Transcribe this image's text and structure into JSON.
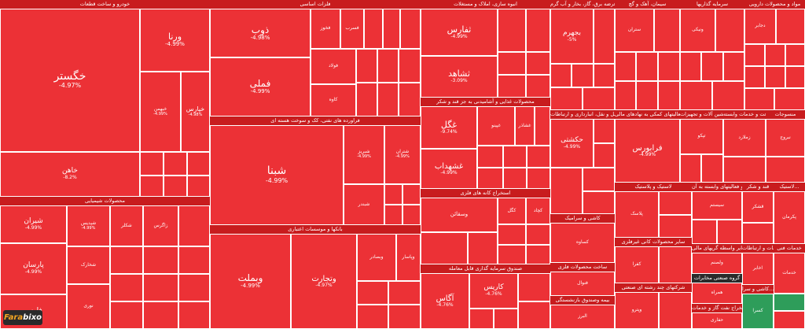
{
  "colors": {
    "negative": "#ec3136",
    "sector_header": "#c81c1e",
    "positive": "#2e9d5a"
  },
  "logo": {
    "part1": "Fara",
    "part2": "bixo"
  },
  "sectors": [
    {
      "title": "خودرو و ساخت قطعات",
      "tiles": [
        {
          "symbol": "خگستر",
          "change": "-4.97%"
        },
        {
          "symbol": "ورنا",
          "change": "-4.99%"
        },
        {
          "symbol": "خاهن",
          "change": "-8.2%"
        },
        {
          "symbol": "خپارس",
          "change": "-4.98%"
        },
        {
          "symbol": "خبهمن",
          "change": "-4.99%"
        }
      ]
    },
    {
      "title": "محصولات شیمیایی",
      "tiles": [
        {
          "symbol": "شیران",
          "change": "-4.99%"
        },
        {
          "symbol": "پارسان",
          "change": "-4.99%"
        },
        {
          "symbol": "فارس",
          "change": ""
        },
        {
          "symbol": "شپدیس",
          "change": "-4.99%"
        },
        {
          "symbol": "شکلر",
          "change": ""
        },
        {
          "symbol": "زاگرس",
          "change": ""
        },
        {
          "symbol": "شخارک",
          "change": ""
        },
        {
          "symbol": "نوری",
          "change": ""
        }
      ]
    },
    {
      "title": "فلزات اساسی",
      "tiles": [
        {
          "symbol": "ذوب",
          "change": "-4.98%"
        },
        {
          "symbol": "فملی",
          "change": "-4.99%"
        },
        {
          "symbol": "فولاد",
          "change": ""
        },
        {
          "symbol": "کاوه",
          "change": ""
        },
        {
          "symbol": "فخوز",
          "change": ""
        },
        {
          "symbol": "فسرب",
          "change": ""
        }
      ]
    },
    {
      "title": "فراورده های نفتی، کک و سوخت هسته ای",
      "tiles": [
        {
          "symbol": "شبنا",
          "change": "-4.99%"
        },
        {
          "symbol": "شبریز",
          "change": "-4.99%"
        },
        {
          "symbol": "شتران",
          "change": "-4.99%"
        },
        {
          "symbol": "شبندر",
          "change": ""
        }
      ]
    },
    {
      "title": "بانکها و موسسات اعتباری",
      "tiles": [
        {
          "symbol": "وبملت",
          "change": "-4.99%"
        },
        {
          "symbol": "وتجارت",
          "change": "-4.97%"
        },
        {
          "symbol": "وبصادر",
          "change": ""
        },
        {
          "symbol": "وپاسار",
          "change": ""
        }
      ]
    },
    {
      "title": "انبوه سازی، املاک و مستغلات",
      "tiles": [
        {
          "symbol": "ثفارس",
          "change": "-4.99%"
        },
        {
          "symbol": "ثشاهد",
          "change": "-3.09%"
        }
      ]
    },
    {
      "title": "محصولات غذایی و آشامیدنی به جز قند و شکر",
      "tiles": [
        {
          "symbol": "غگل",
          "change": "-9.74%"
        },
        {
          "symbol": "غشهداب",
          "change": "-4.99%"
        },
        {
          "symbol": "غپینو",
          "change": ""
        },
        {
          "symbol": "غشاذر",
          "change": ""
        }
      ]
    },
    {
      "title": "استخراج کانه های فلزی",
      "tiles": [
        {
          "symbol": "وسقائن",
          "change": ""
        },
        {
          "symbol": "کگل",
          "change": ""
        },
        {
          "symbol": "کچاد",
          "change": ""
        }
      ]
    },
    {
      "title": "صندوق سرمایه گذاری قابل معامله",
      "tiles": [
        {
          "symbol": "آگاس",
          "change": "-4.76%"
        },
        {
          "symbol": "کاریس",
          "change": "-4.76%"
        }
      ]
    },
    {
      "title": "عرضه برق، گاز، بخار و آب گرم",
      "tiles": [
        {
          "symbol": "بجهرم",
          "change": "-5%"
        }
      ]
    },
    {
      "title": "سیمان، آهک و گچ",
      "tiles": [
        {
          "symbol": "ستران",
          "change": ""
        }
      ]
    },
    {
      "title": "سرمایه گذاریها",
      "tiles": [
        {
          "symbol": "ونیکی",
          "change": ""
        }
      ]
    },
    {
      "title": "مواد و محصولات دارویی",
      "tiles": [
        {
          "symbol": "دجابر",
          "change": ""
        }
      ]
    },
    {
      "title": "حمل و نقل، انبارداری و ارتباطات",
      "tiles": [
        {
          "symbol": "حکشتی",
          "change": "-4.99%"
        }
      ]
    },
    {
      "title": "فعالیتهای کمکی به نهادهای مالی",
      "tiles": [
        {
          "symbol": "فرابورس",
          "change": "-4.99%"
        }
      ]
    },
    {
      "title": "ماشین آلات و تجهیزات",
      "tiles": [
        {
          "symbol": "تپکو",
          "change": ""
        }
      ]
    },
    {
      "title": "زراعت و خدمات وابسته",
      "tiles": [
        {
          "symbol": "زملارد",
          "change": ""
        }
      ]
    },
    {
      "title": "منسوجات",
      "tiles": [
        {
          "symbol": "نبروج",
          "change": ""
        }
      ]
    },
    {
      "title": "کاشی و سرامیک",
      "tiles": [
        {
          "symbol": "کساوه",
          "change": ""
        }
      ]
    },
    {
      "title": "لاستیک و پلاستیک",
      "tiles": [
        {
          "symbol": "پلاسک",
          "change": ""
        }
      ]
    },
    {
      "title": "رایانه و فعالیتهای وابسته به آن",
      "tiles": [
        {
          "symbol": "سیستم",
          "change": ""
        }
      ]
    },
    {
      "title": "سایر واسطه گریهای مالی",
      "tiles": [
        {
          "symbol": "ولصنم",
          "change": ""
        }
      ]
    },
    {
      "title": "قند و شکر",
      "tiles": [
        {
          "symbol": "قشکر",
          "change": ""
        }
      ]
    },
    {
      "title": "ساخت محصولات فلزی",
      "tiles": [
        {
          "symbol": "فنوال",
          "change": ""
        }
      ]
    },
    {
      "title": "سایر محصولات کانی غیرفلزی",
      "tiles": [
        {
          "symbol": "کفرا",
          "change": ""
        }
      ]
    },
    {
      "title": "اطلاعات و ارتباطات",
      "tiles": [
        {
          "symbol": "اخابر",
          "change": ""
        }
      ]
    },
    {
      "title": "خدمات فنی",
      "tiles": [
        {
          "symbol": "خدمات",
          "change": ""
        }
      ]
    },
    {
      "title": "گروه صنعتی مخابرات",
      "tiles": [
        {
          "symbol": "همراه",
          "change": ""
        }
      ]
    },
    {
      "title": "استخراج نفت گاز و خدمات",
      "tiles": [
        {
          "symbol": "حفاری",
          "change": ""
        }
      ]
    },
    {
      "title": "بیمه وصندوق بازنشستگی",
      "tiles": [
        {
          "symbol": "البرز",
          "change": ""
        }
      ]
    },
    {
      "title": "شرکتهای چند رشته ای صنعتی",
      "tiles": [
        {
          "symbol": "وپترو",
          "change": ""
        }
      ]
    },
    {
      "title": "کاشی و سرا...",
      "tiles": [
        {
          "symbol": "کسرا",
          "change": ""
        }
      ]
    },
    {
      "title": "لاستیک...",
      "tiles": [
        {
          "symbol": "پکرمان",
          "change": ""
        }
      ]
    }
  ]
}
